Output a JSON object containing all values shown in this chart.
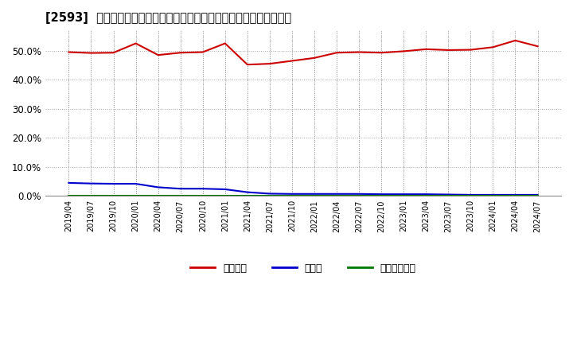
{
  "title": "[2593]  自己資本、のれん、繰延税金資産の総資産に対する比率の推移",
  "background_color": "#ffffff",
  "grid_color": "#999999",
  "x_labels": [
    "2019/04",
    "2019/07",
    "2019/10",
    "2020/01",
    "2020/04",
    "2020/07",
    "2020/10",
    "2021/01",
    "2021/04",
    "2021/07",
    "2021/10",
    "2022/01",
    "2022/04",
    "2022/07",
    "2022/10",
    "2023/01",
    "2023/04",
    "2023/07",
    "2023/10",
    "2024/01",
    "2024/04",
    "2024/07"
  ],
  "series": [
    {
      "name": "自己資本",
      "color": "#cc0000",
      "values": [
        49.5,
        49.2,
        49.3,
        52.5,
        48.5,
        49.3,
        49.5,
        52.5,
        45.2,
        45.5,
        46.5,
        47.5,
        49.3,
        49.5,
        49.3,
        49.8,
        50.5,
        50.2,
        50.3,
        51.2,
        53.5,
        51.5
      ]
    },
    {
      "name": "のれん",
      "color": "#0000cc",
      "values": [
        4.5,
        4.3,
        4.2,
        4.2,
        3.0,
        2.5,
        2.5,
        2.3,
        1.3,
        0.8,
        0.7,
        0.7,
        0.7,
        0.7,
        0.6,
        0.6,
        0.6,
        0.5,
        0.4,
        0.4,
        0.4,
        0.4
      ]
    },
    {
      "name": "繰延税金資産",
      "color": "#007700",
      "values": [
        0.05,
        0.05,
        0.05,
        0.05,
        0.05,
        0.05,
        0.05,
        0.05,
        0.05,
        0.05,
        0.05,
        0.05,
        0.05,
        0.05,
        0.05,
        0.05,
        0.05,
        0.05,
        0.05,
        0.05,
        0.05,
        0.05
      ]
    }
  ],
  "ylim": [
    0,
    57
  ],
  "yticks": [
    0.0,
    10.0,
    20.0,
    30.0,
    40.0,
    50.0
  ],
  "legend_labels": [
    "自己資本",
    "のれん",
    "繰延税金資産"
  ],
  "legend_colors": [
    "#cc0000",
    "#0000cc",
    "#007700"
  ]
}
